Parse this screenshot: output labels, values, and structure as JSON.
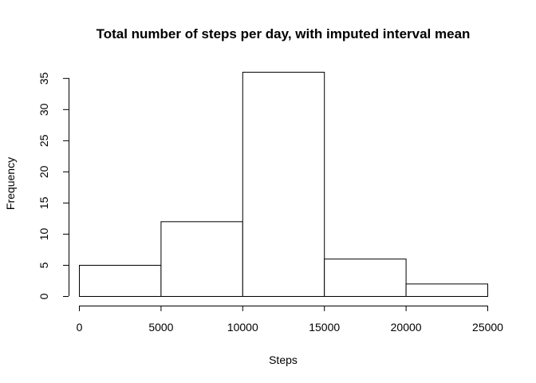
{
  "chart_data": {
    "type": "bar",
    "title": "Total number of steps per day, with imputed interval mean",
    "xlabel": "Steps",
    "ylabel": "Frequency",
    "bins": [
      {
        "start": 0,
        "end": 5000,
        "value": 5
      },
      {
        "start": 5000,
        "end": 10000,
        "value": 12
      },
      {
        "start": 10000,
        "end": 15000,
        "value": 36
      },
      {
        "start": 15000,
        "end": 20000,
        "value": 6
      },
      {
        "start": 20000,
        "end": 25000,
        "value": 2
      }
    ],
    "xlim": [
      0,
      25000
    ],
    "ylim": [
      0,
      36
    ],
    "xticks": [
      "0",
      "5000",
      "10000",
      "15000",
      "20000",
      "25000"
    ],
    "yticks": [
      "0",
      "5",
      "10",
      "15",
      "20",
      "25",
      "30",
      "35"
    ],
    "grid": false,
    "colors": {
      "bar_fill": "#ffffff",
      "bar_stroke": "#000000"
    }
  }
}
